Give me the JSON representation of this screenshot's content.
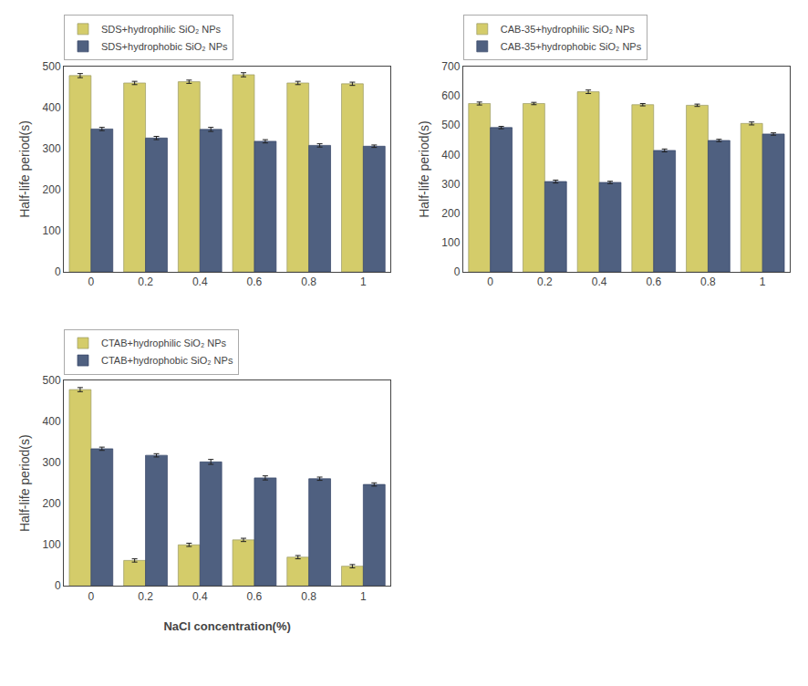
{
  "chart_data": [
    {
      "type": "bar",
      "categories": [
        "0",
        "0.2",
        "0.4",
        "0.6",
        "0.8",
        "1"
      ],
      "series": [
        {
          "name": "SDS+hydrophilic SiO₂ NPs",
          "color": "#d4cc6a",
          "values": [
            478,
            460,
            463,
            480,
            460,
            458
          ],
          "errors": [
            5,
            4,
            4,
            5,
            4,
            4
          ]
        },
        {
          "name": "SDS+hydrophobic SiO₂ NPs",
          "color": "#4f6080",
          "values": [
            348,
            326,
            347,
            318,
            308,
            306
          ],
          "errors": [
            4,
            4,
            5,
            4,
            4,
            3
          ]
        }
      ],
      "ylabel": "Half-life period(s)",
      "ylim": [
        0,
        500
      ],
      "yticks": [
        0,
        100,
        200,
        300,
        400,
        500
      ],
      "grid": false
    },
    {
      "type": "bar",
      "categories": [
        "0",
        "0.2",
        "0.4",
        "0.6",
        "0.8",
        "1"
      ],
      "series": [
        {
          "name": "CAB-35+hydrophilic SiO₂ NPs",
          "color": "#d4cc6a",
          "values": [
            574,
            574,
            614,
            570,
            568,
            506
          ],
          "errors": [
            5,
            4,
            6,
            4,
            4,
            5
          ]
        },
        {
          "name": "CAB-35+hydrophobic SiO₂ NPs",
          "color": "#4f6080",
          "values": [
            492,
            308,
            305,
            414,
            448,
            470
          ],
          "errors": [
            4,
            5,
            4,
            5,
            4,
            4
          ]
        }
      ],
      "ylabel": "Half-life period(s)",
      "ylim": [
        0,
        700
      ],
      "yticks": [
        0,
        100,
        200,
        300,
        400,
        500,
        600,
        700
      ],
      "grid": false
    },
    {
      "type": "bar",
      "categories": [
        "0",
        "0.2",
        "0.4",
        "0.6",
        "0.8",
        "1"
      ],
      "series": [
        {
          "name": "CTAB+hydrophilic SiO₂ NPs",
          "color": "#d4cc6a",
          "values": [
            478,
            62,
            100,
            112,
            70,
            48
          ],
          "errors": [
            5,
            4,
            4,
            4,
            4,
            4
          ]
        },
        {
          "name": "CTAB+hydrophobic SiO₂ NPs",
          "color": "#4f6080",
          "values": [
            334,
            318,
            302,
            263,
            261,
            247
          ],
          "errors": [
            4,
            4,
            6,
            5,
            4,
            4
          ]
        }
      ],
      "xlabel": "NaCl concentration(%)",
      "ylabel": "Half-life period(s)",
      "ylim": [
        0,
        500
      ],
      "yticks": [
        0,
        100,
        200,
        300,
        400,
        500
      ],
      "grid": false
    }
  ]
}
